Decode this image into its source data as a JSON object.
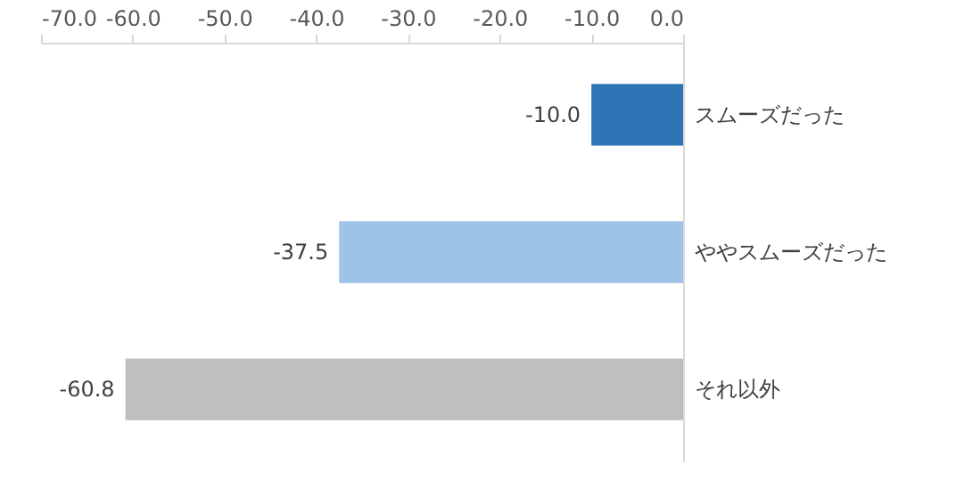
{
  "chart_data": {
    "type": "bar",
    "orientation": "horizontal",
    "categories": [
      "スムーズだった",
      "ややスムーズだった",
      "それ以外"
    ],
    "values": [
      -10.0,
      -37.5,
      -60.8
    ],
    "colors": [
      "#2e75b6",
      "#9dc3e6",
      "#bfbfbf"
    ],
    "value_labels": [
      "-10.0",
      "-37.5",
      "-60.8"
    ],
    "xlim": [
      -70,
      0
    ],
    "xticks": [
      {
        "value": -70,
        "label": "-70.0"
      },
      {
        "value": -60,
        "label": "-60.0"
      },
      {
        "value": -50,
        "label": "-50.0"
      },
      {
        "value": -40,
        "label": "-40.0"
      },
      {
        "value": -30,
        "label": "-30.0"
      },
      {
        "value": -20,
        "label": "-20.0"
      },
      {
        "value": -10,
        "label": "-10.0"
      },
      {
        "value": 0,
        "label": "0.0"
      }
    ],
    "grid": false
  }
}
